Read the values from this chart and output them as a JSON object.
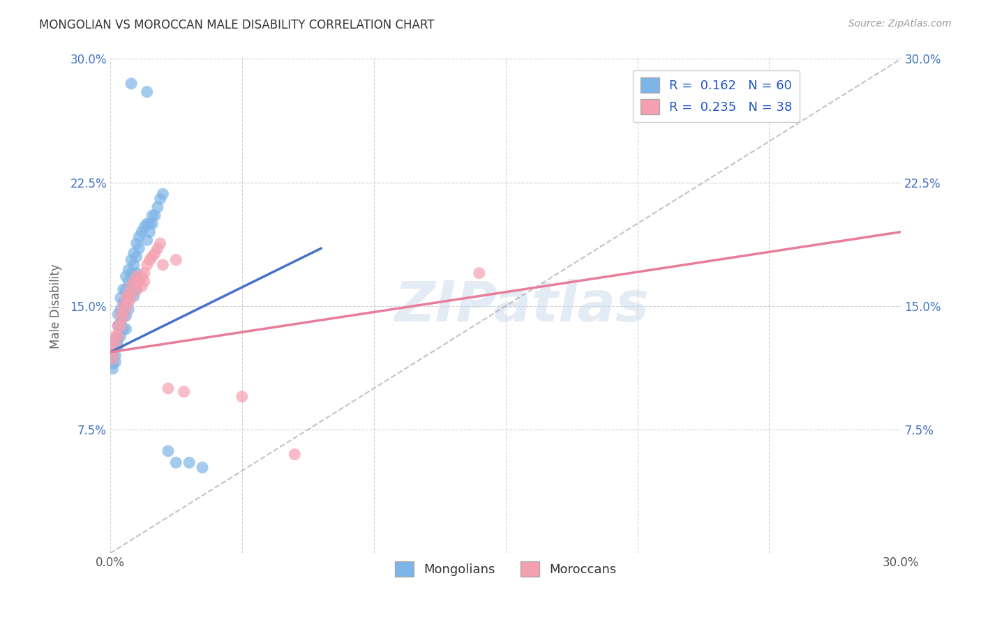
{
  "title": "MONGOLIAN VS MOROCCAN MALE DISABILITY CORRELATION CHART",
  "source": "Source: ZipAtlas.com",
  "ylabel": "Male Disability",
  "xlim": [
    0.0,
    0.3
  ],
  "ylim": [
    0.0,
    0.3
  ],
  "mongolian_color": "#7eb5e8",
  "moroccan_color": "#f4a0b0",
  "mongolian_line_color": "#4472c4",
  "moroccan_line_color": "#e87c9a",
  "mongolian_R": 0.162,
  "mongolian_N": 60,
  "moroccan_R": 0.235,
  "moroccan_N": 38,
  "watermark": "ZIPatlas",
  "legend_label_1": "Mongolians",
  "legend_label_2": "Moroccans",
  "background_color": "#ffffff",
  "grid_color": "#cccccc",
  "mongolian_x": [
    0.008,
    0.014,
    0.001,
    0.001,
    0.001,
    0.001,
    0.002,
    0.002,
    0.002,
    0.002,
    0.003,
    0.003,
    0.003,
    0.003,
    0.004,
    0.004,
    0.004,
    0.004,
    0.005,
    0.005,
    0.005,
    0.005,
    0.006,
    0.006,
    0.006,
    0.006,
    0.006,
    0.007,
    0.007,
    0.007,
    0.007,
    0.008,
    0.008,
    0.008,
    0.009,
    0.009,
    0.009,
    0.009,
    0.01,
    0.01,
    0.01,
    0.01,
    0.011,
    0.011,
    0.012,
    0.013,
    0.014,
    0.014,
    0.015,
    0.015,
    0.016,
    0.016,
    0.017,
    0.018,
    0.019,
    0.02,
    0.022,
    0.025,
    0.03,
    0.035
  ],
  "mongolian_y": [
    0.285,
    0.28,
    0.12,
    0.118,
    0.115,
    0.112,
    0.13,
    0.125,
    0.12,
    0.116,
    0.145,
    0.138,
    0.13,
    0.126,
    0.155,
    0.148,
    0.14,
    0.132,
    0.16,
    0.152,
    0.144,
    0.136,
    0.168,
    0.16,
    0.152,
    0.144,
    0.136,
    0.172,
    0.165,
    0.157,
    0.148,
    0.178,
    0.17,
    0.162,
    0.182,
    0.175,
    0.165,
    0.156,
    0.188,
    0.18,
    0.17,
    0.16,
    0.192,
    0.185,
    0.195,
    0.198,
    0.2,
    0.19,
    0.2,
    0.195,
    0.205,
    0.2,
    0.205,
    0.21,
    0.215,
    0.218,
    0.062,
    0.055,
    0.055,
    0.052
  ],
  "moroccan_x": [
    0.001,
    0.001,
    0.001,
    0.002,
    0.002,
    0.003,
    0.003,
    0.004,
    0.004,
    0.005,
    0.005,
    0.006,
    0.006,
    0.007,
    0.007,
    0.008,
    0.008,
    0.009,
    0.01,
    0.01,
    0.011,
    0.012,
    0.012,
    0.013,
    0.013,
    0.014,
    0.015,
    0.016,
    0.017,
    0.018,
    0.019,
    0.02,
    0.022,
    0.025,
    0.028,
    0.05,
    0.07,
    0.14
  ],
  "moroccan_y": [
    0.128,
    0.122,
    0.118,
    0.132,
    0.126,
    0.138,
    0.132,
    0.145,
    0.138,
    0.15,
    0.143,
    0.155,
    0.148,
    0.158,
    0.152,
    0.162,
    0.155,
    0.165,
    0.168,
    0.16,
    0.165,
    0.168,
    0.162,
    0.17,
    0.165,
    0.175,
    0.178,
    0.18,
    0.182,
    0.185,
    0.188,
    0.175,
    0.1,
    0.178,
    0.098,
    0.095,
    0.06,
    0.17
  ],
  "mongolian_trend_x": [
    0.0,
    0.08
  ],
  "mongolian_trend_y": [
    0.122,
    0.185
  ],
  "moroccan_trend_x": [
    0.0,
    0.3
  ],
  "moroccan_trend_y": [
    0.122,
    0.195
  ],
  "ref_line_x": [
    0.0,
    0.3
  ],
  "ref_line_y": [
    0.0,
    0.3
  ]
}
